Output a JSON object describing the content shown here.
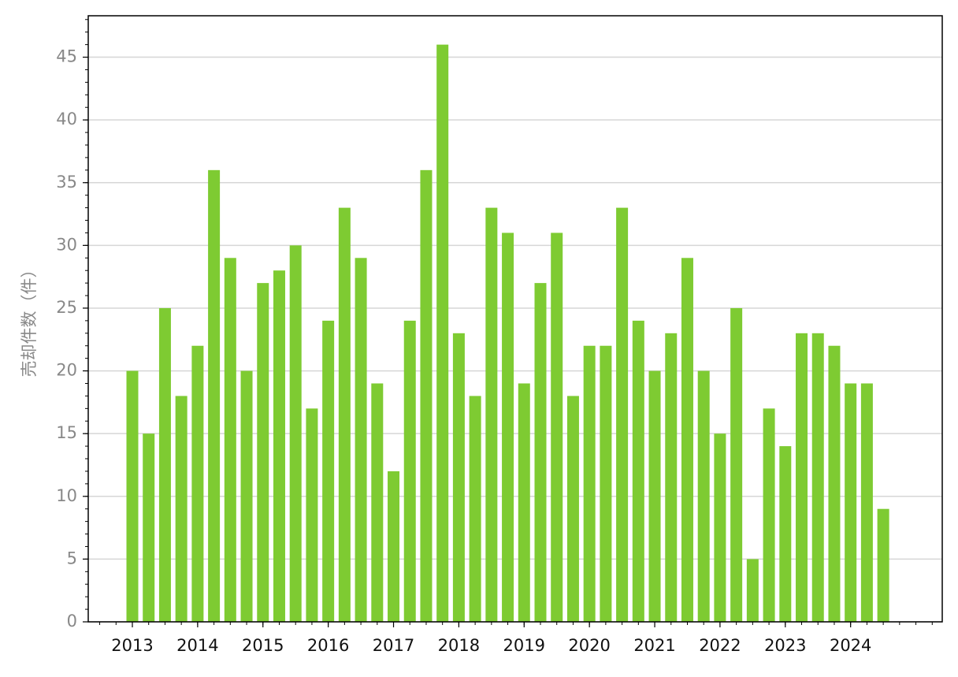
{
  "chart_data": {
    "type": "bar",
    "y_label": "売却件数（件）",
    "categories": [
      "2013",
      null,
      null,
      null,
      "2014",
      null,
      null,
      null,
      "2015",
      null,
      null,
      null,
      "2016",
      null,
      null,
      null,
      "2017",
      null,
      null,
      null,
      "2018",
      null,
      null,
      null,
      "2019",
      null,
      null,
      null,
      "2020",
      null,
      null,
      null,
      "2021",
      null,
      null,
      null,
      "2022",
      null,
      null,
      null,
      "2023",
      null,
      null,
      null,
      "2024",
      null,
      null
    ],
    "values": [
      20,
      15,
      25,
      18,
      22,
      36,
      29,
      20,
      27,
      28,
      30,
      17,
      24,
      33,
      29,
      19,
      12,
      24,
      36,
      46,
      23,
      18,
      33,
      31,
      19,
      27,
      31,
      18,
      22,
      22,
      33,
      24,
      20,
      23,
      29,
      20,
      15,
      25,
      5,
      17,
      14,
      23,
      23,
      22,
      19,
      19,
      9
    ],
    "color": "#7ecb32",
    "ylim": [
      0,
      48.3
    ],
    "yticks": [
      0,
      5,
      10,
      15,
      20,
      25,
      30,
      35,
      40,
      45
    ],
    "grid": true
  }
}
